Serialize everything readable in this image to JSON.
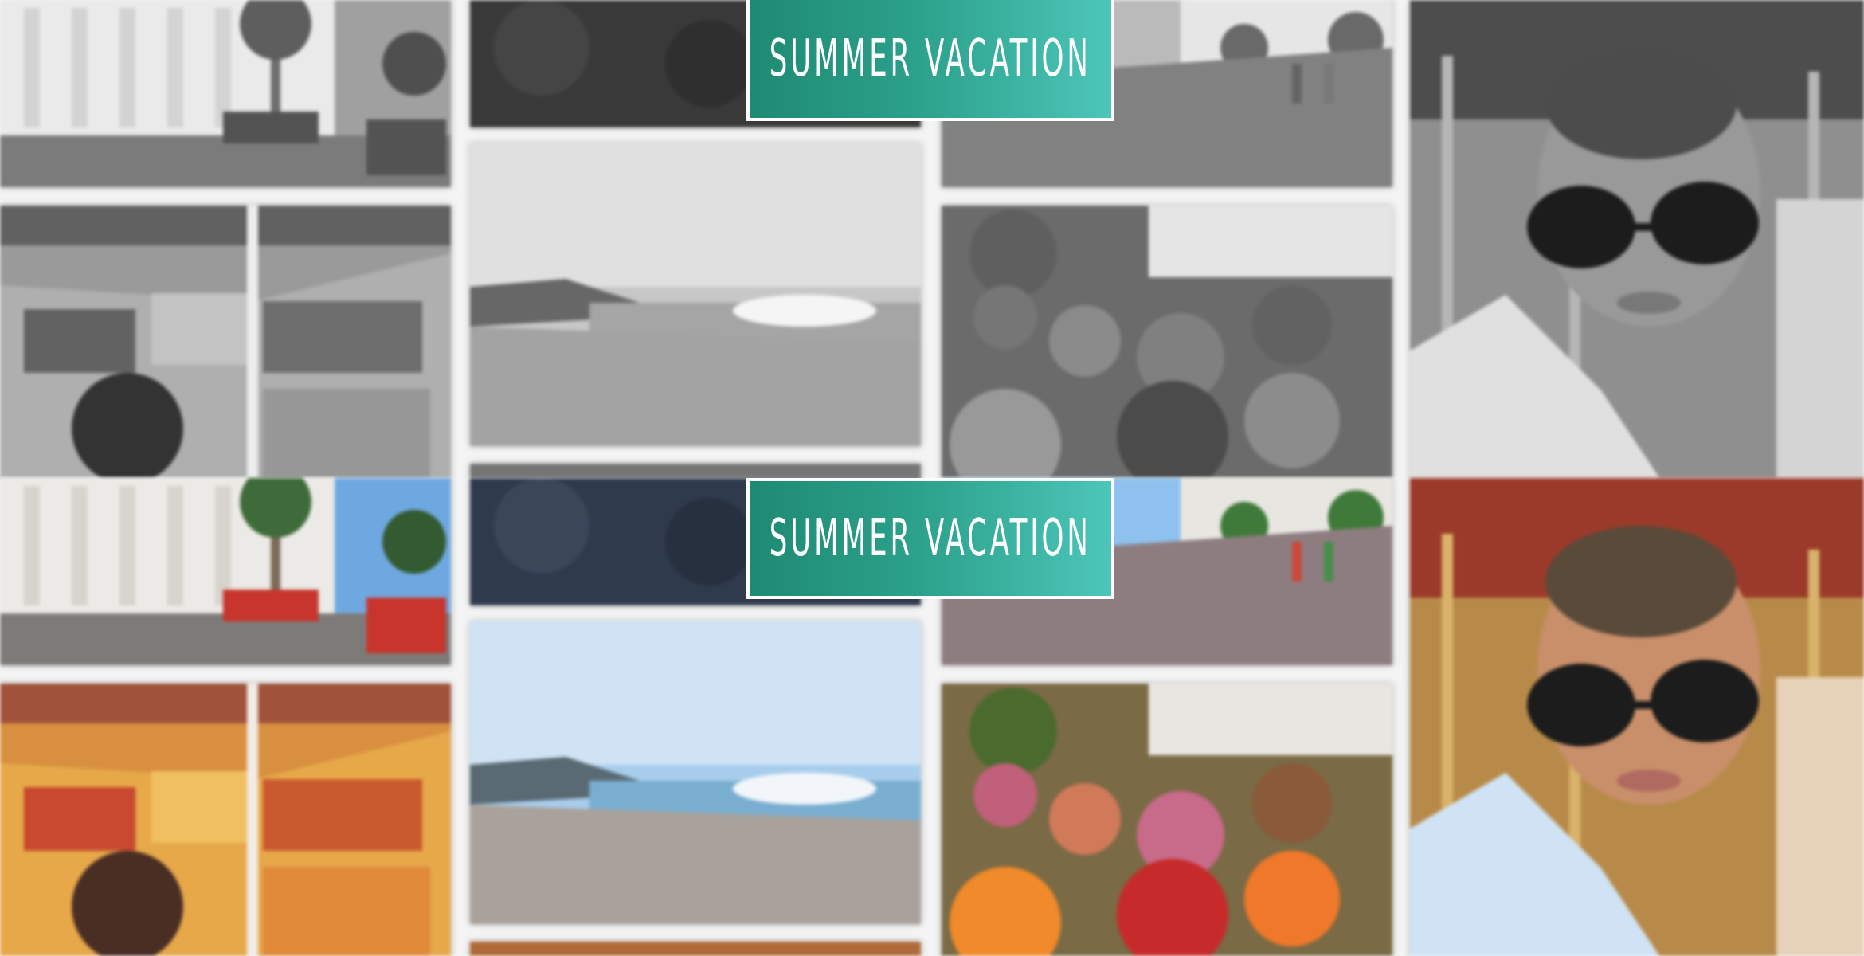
{
  "banner": {
    "title": "SUMMER VACATION",
    "gradient_start": "#1f8a73",
    "gradient_end": "#4cc6b9",
    "border_color": "#ffffff"
  },
  "panels": [
    {
      "variant": "grayscale"
    },
    {
      "variant": "color"
    }
  ],
  "photos": [
    "white-hotel-with-palm-trees",
    "dark-crowd-photo",
    "promenade-street",
    "woman-with-sunglasses-at-carousel",
    "candied-fruit-market-stall",
    "beach-and-sea-coastline",
    "flower-market-bouquets",
    "partial-bottom-photo"
  ]
}
